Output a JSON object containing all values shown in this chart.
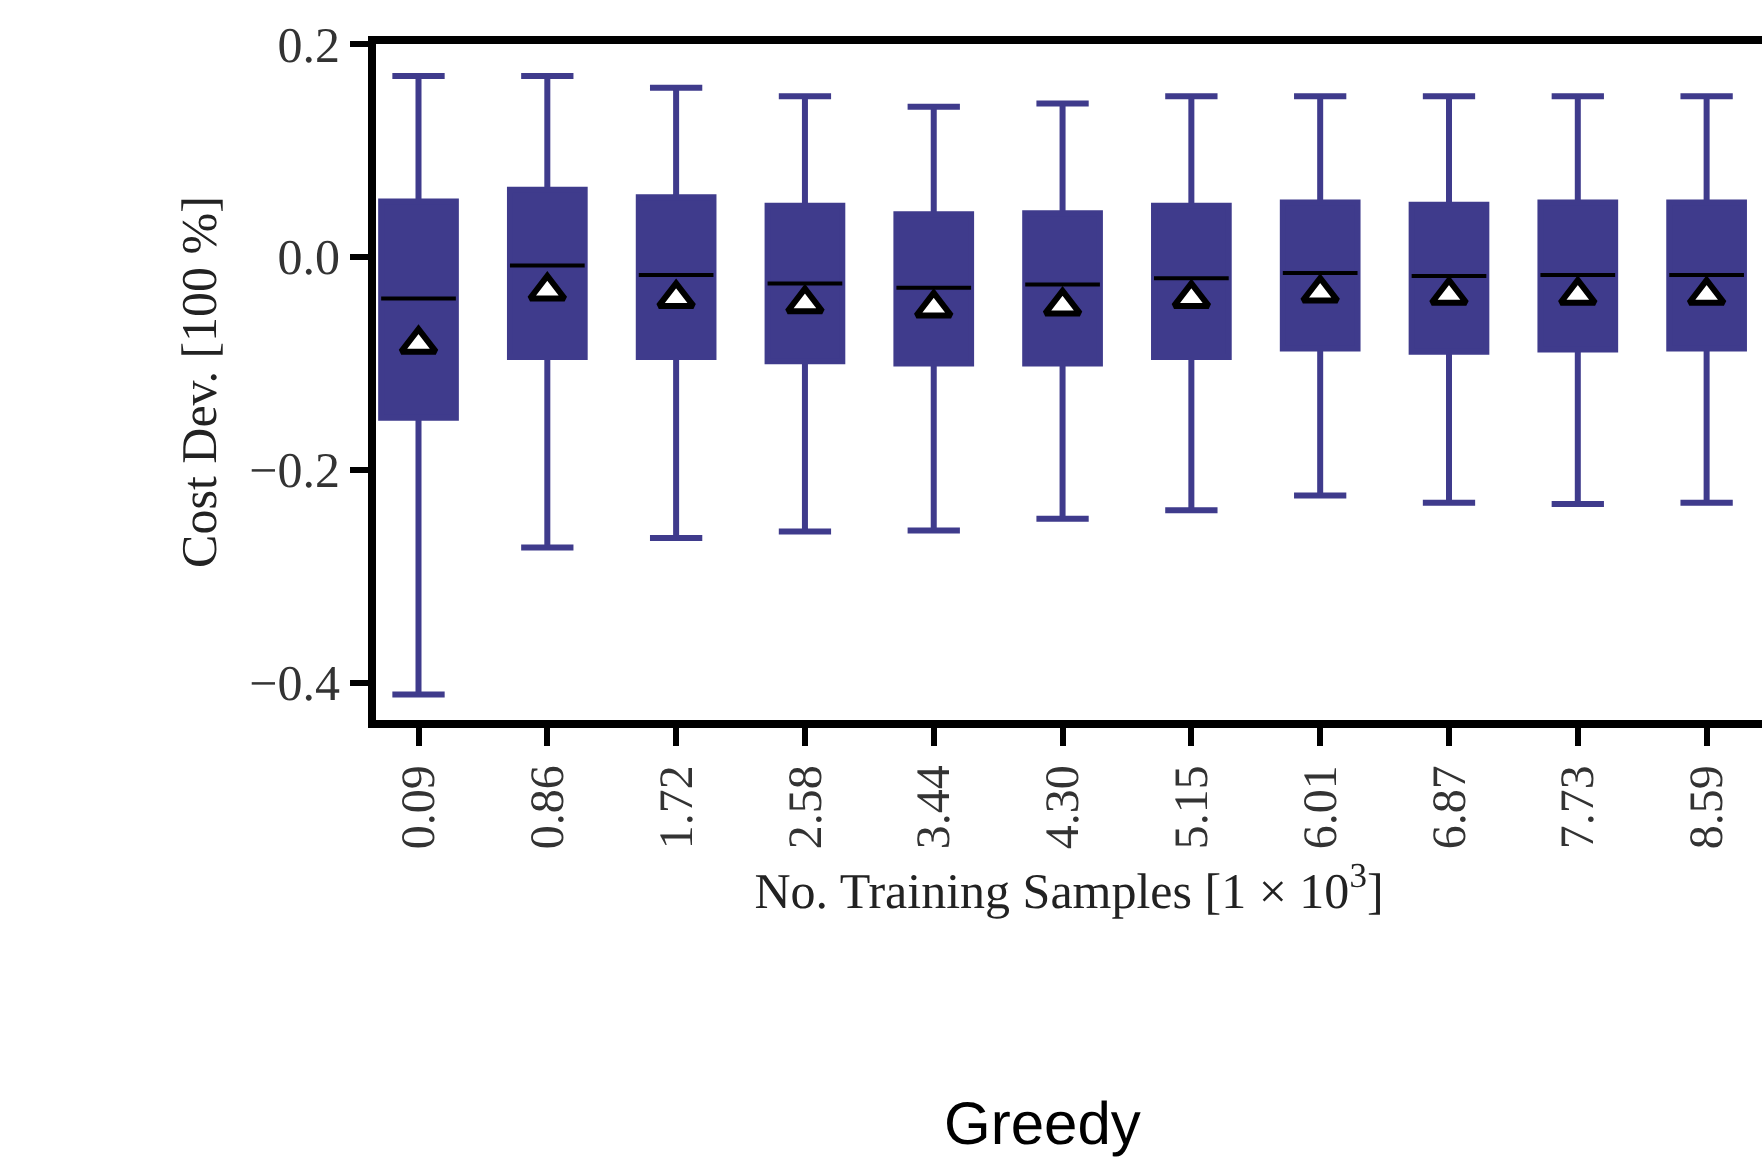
{
  "chart_data": {
    "type": "box",
    "xlabel": "No. Training Samples [1 × 10$^{3}$]",
    "ylabel": "Cost Dev. [100 %]",
    "annotations": [
      "Greedy"
    ],
    "categories": [
      "0.09",
      "0.86",
      "1.72",
      "2.58",
      "3.44",
      "4.30",
      "5.15",
      "6.01",
      "6.87",
      "7.73",
      "8.59"
    ],
    "ylim": [
      -0.435,
      0.2
    ],
    "yticks": [
      {
        "value": 0.2,
        "label": "0.2"
      },
      {
        "value": 0.0,
        "label": "0.0"
      },
      {
        "value": -0.2,
        "label": "−0.2"
      },
      {
        "value": -0.4,
        "label": "−0.4"
      }
    ],
    "grid": false,
    "series": [
      {
        "color": "#3f3b8c",
        "boxes": [
          {
            "low": -0.411,
            "q1": -0.151,
            "median": -0.039,
            "q3": 0.052,
            "high": 0.17,
            "mean": -0.082
          },
          {
            "low": -0.273,
            "q1": -0.094,
            "median": -0.008,
            "q3": 0.063,
            "high": 0.17,
            "mean": -0.032
          },
          {
            "low": -0.264,
            "q1": -0.094,
            "median": -0.017,
            "q3": 0.056,
            "high": 0.159,
            "mean": -0.039
          },
          {
            "low": -0.258,
            "q1": -0.098,
            "median": -0.025,
            "q3": 0.048,
            "high": 0.151,
            "mean": -0.044
          },
          {
            "low": -0.257,
            "q1": -0.1,
            "median": -0.029,
            "q3": 0.04,
            "high": 0.141,
            "mean": -0.048
          },
          {
            "low": -0.246,
            "q1": -0.1,
            "median": -0.026,
            "q3": 0.041,
            "high": 0.144,
            "mean": -0.046
          },
          {
            "low": -0.238,
            "q1": -0.094,
            "median": -0.02,
            "q3": 0.048,
            "high": 0.151,
            "mean": -0.039
          },
          {
            "low": -0.224,
            "q1": -0.086,
            "median": -0.015,
            "q3": 0.051,
            "high": 0.151,
            "mean": -0.034
          },
          {
            "low": -0.231,
            "q1": -0.089,
            "median": -0.018,
            "q3": 0.049,
            "high": 0.151,
            "mean": -0.036
          },
          {
            "low": -0.232,
            "q1": -0.087,
            "median": -0.017,
            "q3": 0.051,
            "high": 0.151,
            "mean": -0.036
          },
          {
            "low": -0.231,
            "q1": -0.086,
            "median": -0.017,
            "q3": 0.051,
            "high": 0.151,
            "mean": -0.036
          }
        ]
      }
    ]
  }
}
